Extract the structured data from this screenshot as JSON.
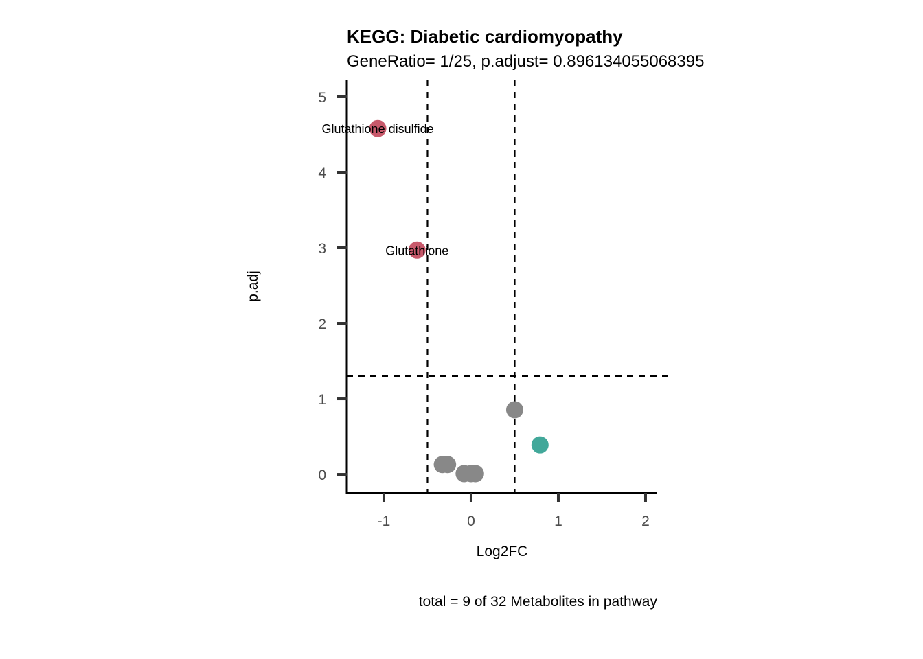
{
  "chart_data": {
    "type": "scatter",
    "title": "KEGG: Diabetic cardiomyopathy",
    "subtitle": "GeneRatio= 1/25, p.adjust= 0.896134055068395",
    "xlabel": "Log2FC",
    "ylabel": "p.adj",
    "caption": "total = 9 of 32 Metabolites in pathway",
    "xlim": [
      -1.425,
      2.134
    ],
    "ylim": [
      -0.245,
      5.218
    ],
    "x_ticks": [
      -1,
      0,
      1,
      2
    ],
    "x_tick_labels": [
      "-1",
      "0",
      "1",
      "2"
    ],
    "y_ticks": [
      0,
      1,
      2,
      3,
      4,
      5
    ],
    "y_tick_labels": [
      "0",
      "1",
      "2",
      "3",
      "4",
      "5"
    ],
    "grid": false,
    "legend": "none",
    "reference_lines": {
      "vertical": [
        -0.5,
        0.5
      ],
      "horizontal": [
        1.301
      ]
    },
    "colors": {
      "down": "#C8596B",
      "up": "#42A89A",
      "ns": "#888888"
    },
    "points": [
      {
        "label": "Glutathione disulfide",
        "x": -1.07,
        "y": 4.58,
        "group": "down"
      },
      {
        "label": "Glutathione",
        "x": -0.62,
        "y": 2.97,
        "group": "down"
      },
      {
        "label": "",
        "x": 0.5,
        "y": 0.855,
        "group": "ns"
      },
      {
        "label": "",
        "x": 0.79,
        "y": 0.39,
        "group": "up"
      },
      {
        "label": "",
        "x": -0.33,
        "y": 0.13,
        "group": "ns"
      },
      {
        "label": "",
        "x": -0.27,
        "y": 0.13,
        "group": "ns"
      },
      {
        "label": "",
        "x": -0.08,
        "y": 0.01,
        "group": "ns"
      },
      {
        "label": "",
        "x": 0.0,
        "y": 0.01,
        "group": "ns"
      },
      {
        "label": "",
        "x": 0.05,
        "y": 0.01,
        "group": "ns"
      }
    ]
  }
}
